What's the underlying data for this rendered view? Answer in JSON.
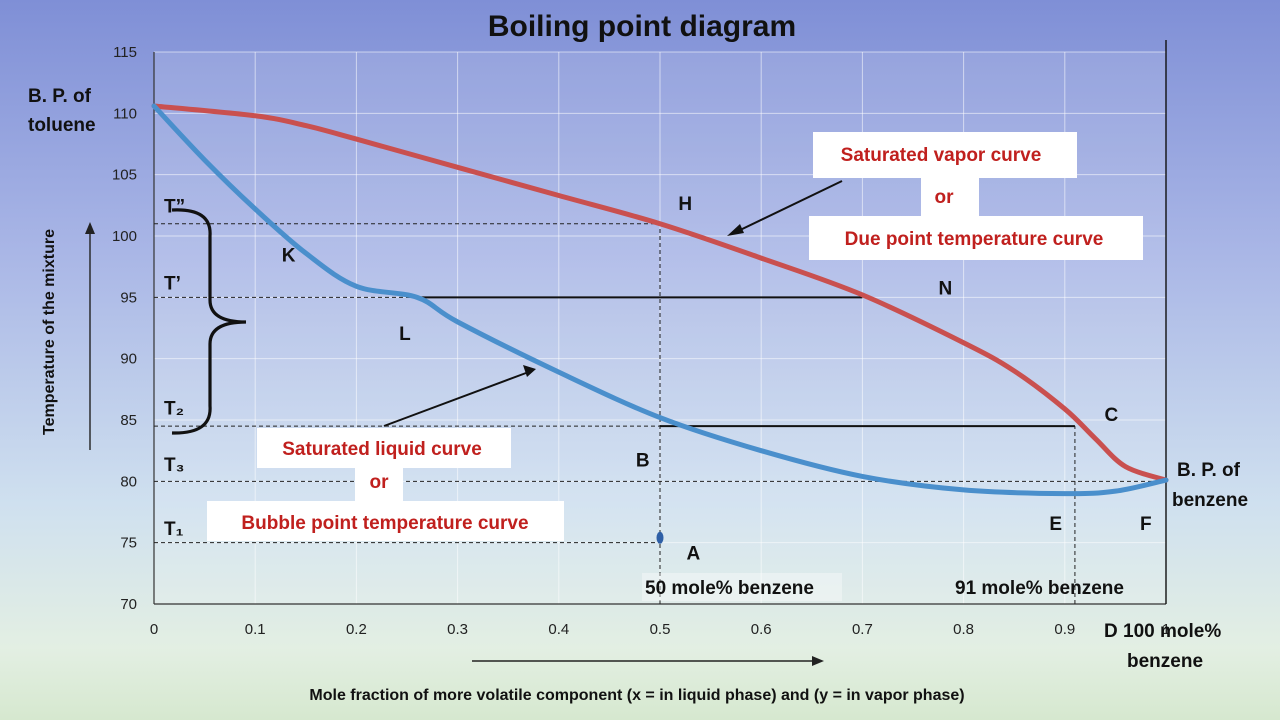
{
  "chart_data": {
    "type": "line",
    "title": "Boiling point diagram",
    "xlabel": "Mole fraction of more volatile component (x = in liquid phase) and  (y = in vapor phase)",
    "ylabel": "Temperature of the mixture",
    "xlim": [
      0,
      1
    ],
    "ylim": [
      70,
      115
    ],
    "x_ticks": [
      "0",
      "0.1",
      "0.2",
      "0.3",
      "0.4",
      "0.5",
      "0.6",
      "0.7",
      "0.8",
      "0.9",
      "1"
    ],
    "y_ticks": [
      "70",
      "75",
      "80",
      "85",
      "90",
      "95",
      "100",
      "105",
      "110",
      "115"
    ],
    "grid": true,
    "series": [
      {
        "name": "vapor",
        "color": "#c9504f",
        "x": [
          0,
          0.1,
          0.15,
          0.2,
          0.3,
          0.4,
          0.5,
          0.6,
          0.7,
          0.8,
          0.85,
          0.9,
          0.93,
          0.96,
          1.0
        ],
        "y": [
          110.6,
          109.8,
          109.0,
          107.9,
          105.6,
          103.3,
          101.0,
          98.2,
          95.2,
          91.3,
          89.0,
          85.9,
          83.5,
          81.2,
          80.1
        ]
      },
      {
        "name": "liquid",
        "color": "#4a8fcc",
        "x": [
          0,
          0.05,
          0.1,
          0.15,
          0.2,
          0.26,
          0.3,
          0.4,
          0.5,
          0.6,
          0.7,
          0.8,
          0.9,
          0.95,
          1.0
        ],
        "y": [
          110.6,
          106.2,
          102.2,
          98.6,
          95.9,
          95.0,
          93.0,
          88.9,
          85.2,
          82.5,
          80.4,
          79.3,
          79.0,
          79.2,
          80.1
        ]
      }
    ],
    "horizontal_lines": [
      {
        "name": "tie-line-95",
        "x1": 0.26,
        "x2": 0.7,
        "y": 95
      },
      {
        "name": "tie-line-84.5",
        "x1": 0.5,
        "x2": 0.91,
        "y": 84.5
      }
    ],
    "dashed_lines": [
      {
        "name": "dash-t-double-prime",
        "x1": 0.0,
        "y1": 101,
        "x2": 0.5,
        "y2": 101
      },
      {
        "name": "dash-95",
        "x1": 0.0,
        "y1": 95,
        "x2": 0.26,
        "y2": 95
      },
      {
        "name": "dash-84.5",
        "x1": 0.0,
        "y1": 84.5,
        "x2": 0.5,
        "y2": 84.5
      },
      {
        "name": "dash-80",
        "x1": 0.0,
        "y1": 80,
        "x2": 1.0,
        "y2": 80
      },
      {
        "name": "dash-75",
        "x1": 0.0,
        "y1": 75,
        "x2": 0.5,
        "y2": 75
      },
      {
        "name": "dash-vert-50",
        "x1": 0.5,
        "y1": 70,
        "x2": 0.5,
        "y2": 101
      },
      {
        "name": "dash-vert-91",
        "x1": 0.91,
        "y1": 70,
        "x2": 0.91,
        "y2": 84.5
      }
    ],
    "point_labels": [
      {
        "text": "H",
        "x": 0.525,
        "y": 102.7
      },
      {
        "text": "K",
        "x": 0.133,
        "y": 98.5
      },
      {
        "text": "L",
        "x": 0.248,
        "y": 92.1
      },
      {
        "text": "N",
        "x": 0.782,
        "y": 95.8
      },
      {
        "text": "B",
        "x": 0.483,
        "y": 81.8
      },
      {
        "text": "C",
        "x": 0.946,
        "y": 85.5
      },
      {
        "text": "E",
        "x": 0.891,
        "y": 76.6
      },
      {
        "text": "F",
        "x": 0.98,
        "y": 76.6
      },
      {
        "text": "A",
        "x": 0.533,
        "y": 74.2
      }
    ],
    "temperature_labels": [
      {
        "text": "T”",
        "y": 102.5
      },
      {
        "text": "T’",
        "y": 96.2
      },
      {
        "text": "T₂",
        "y": 86.0
      },
      {
        "text": "T₃",
        "y": 81.4
      },
      {
        "text": "T₁",
        "y": 76.2
      }
    ],
    "point_A": {
      "x": 0.5,
      "y": 75.4,
      "color": "#2e5fa6"
    }
  },
  "annotations": {
    "bp_toluene": [
      "B. P. of",
      "toluene"
    ],
    "bp_benzene": [
      "B. P. of",
      "benzene"
    ],
    "vapor_curve_label": [
      "Saturated vapor curve",
      "or",
      "Due point temperature curve"
    ],
    "liquid_curve_label": [
      "Saturated liquid curve",
      "or",
      "Bubble point temperature curve"
    ],
    "mole50": "50 mole% benzene",
    "mole91": "91 mole% benzene",
    "d100": [
      "D 100 mole%",
      "benzene"
    ]
  }
}
